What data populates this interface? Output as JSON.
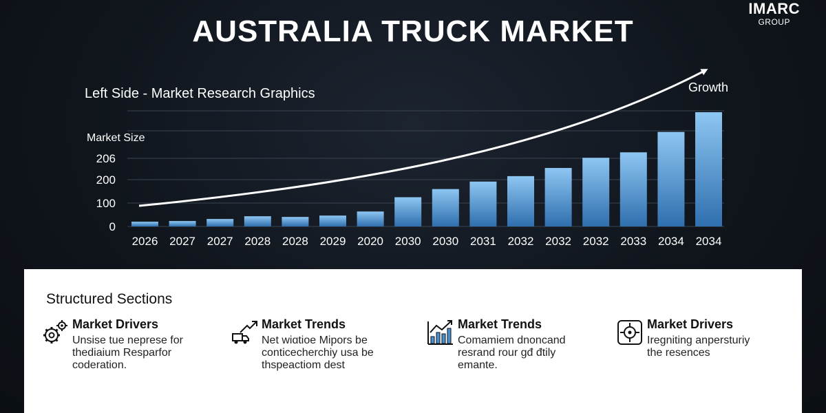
{
  "logo": {
    "main": "IMARC",
    "sub": "GROUP"
  },
  "title": "AUSTRALIA TRUCK MARKET",
  "colors": {
    "bar_top": "#8ec6f2",
    "bar_bottom": "#2f6fae",
    "grid": "#3a4450",
    "text": "#ffffff"
  },
  "chart_data": {
    "type": "bar",
    "subtitle": "Left Side - Market Research Graphics",
    "ylabel": "Market Size",
    "yticks": [
      "0",
      "100",
      "200",
      "206"
    ],
    "annotation": "Growth",
    "trend_arrow": true,
    "grid": true,
    "categories": [
      "2026",
      "2027",
      "2027",
      "2028",
      "2028",
      "2029",
      "2020",
      "2030",
      "2030",
      "2031",
      "2032",
      "2032",
      "2032",
      "2033",
      "2034",
      "2034"
    ],
    "values": [
      7,
      8,
      11,
      15,
      14,
      16,
      22,
      43,
      55,
      66,
      74,
      86,
      101,
      109,
      139,
      168
    ]
  },
  "panel": {
    "title": "Structured Sections",
    "sections": [
      {
        "icon": "gears-icon",
        "title": "Market Drivers",
        "text": "Unsise tue neprese for\nthediaium Resparfor\ncoderation."
      },
      {
        "icon": "truck-arrow-icon",
        "title": "Market Trends",
        "text": "Net wiɑtioe Mipors be\nconticecherchiy usa be\nthspeactiom dest"
      },
      {
        "icon": "bar-chart-icon",
        "title": "Market Trends",
        "text": "Comamiem dnoncand\nresrand rour gđ đtily\nemante."
      },
      {
        "icon": "target-icon",
        "title": "Market Drivers",
        "text": "Iregniting anpersturiy\nthe resences"
      }
    ]
  }
}
